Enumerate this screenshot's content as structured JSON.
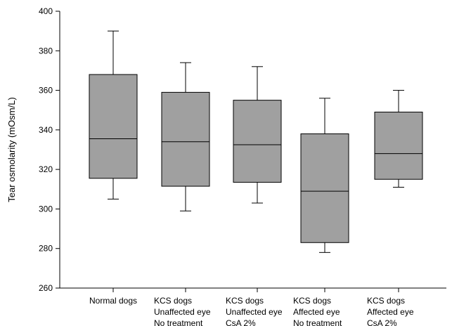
{
  "chart_data": {
    "type": "box",
    "title": "",
    "xlabel": "",
    "ylabel": "Tear osmolarity (mOsm/L)",
    "ylim": [
      260,
      400
    ],
    "yticks": [
      260,
      280,
      300,
      320,
      340,
      360,
      380,
      400
    ],
    "grid": false,
    "box_color": "#a0a0a0",
    "categories": [
      [
        "Normal dogs"
      ],
      [
        "KCS dogs",
        "Unaffected eye",
        "No treatment"
      ],
      [
        "KCS dogs",
        "Unaffected eye",
        "CsA 2%"
      ],
      [
        "KCS dogs",
        "Affected eye",
        "No treatment"
      ],
      [
        "KCS dogs",
        "Affected eye",
        "CsA 2%"
      ]
    ],
    "boxes": [
      {
        "whisker_low": 305,
        "q1": 315.5,
        "median": 335.5,
        "q3": 368,
        "whisker_high": 390
      },
      {
        "whisker_low": 299,
        "q1": 311.5,
        "median": 334,
        "q3": 359,
        "whisker_high": 374
      },
      {
        "whisker_low": 303,
        "q1": 313.5,
        "median": 332.5,
        "q3": 355,
        "whisker_high": 372
      },
      {
        "whisker_low": 278,
        "q1": 283,
        "median": 309,
        "q3": 338,
        "whisker_high": 356
      },
      {
        "whisker_low": 311,
        "q1": 315,
        "median": 328,
        "q3": 349,
        "whisker_high": 360
      }
    ]
  }
}
